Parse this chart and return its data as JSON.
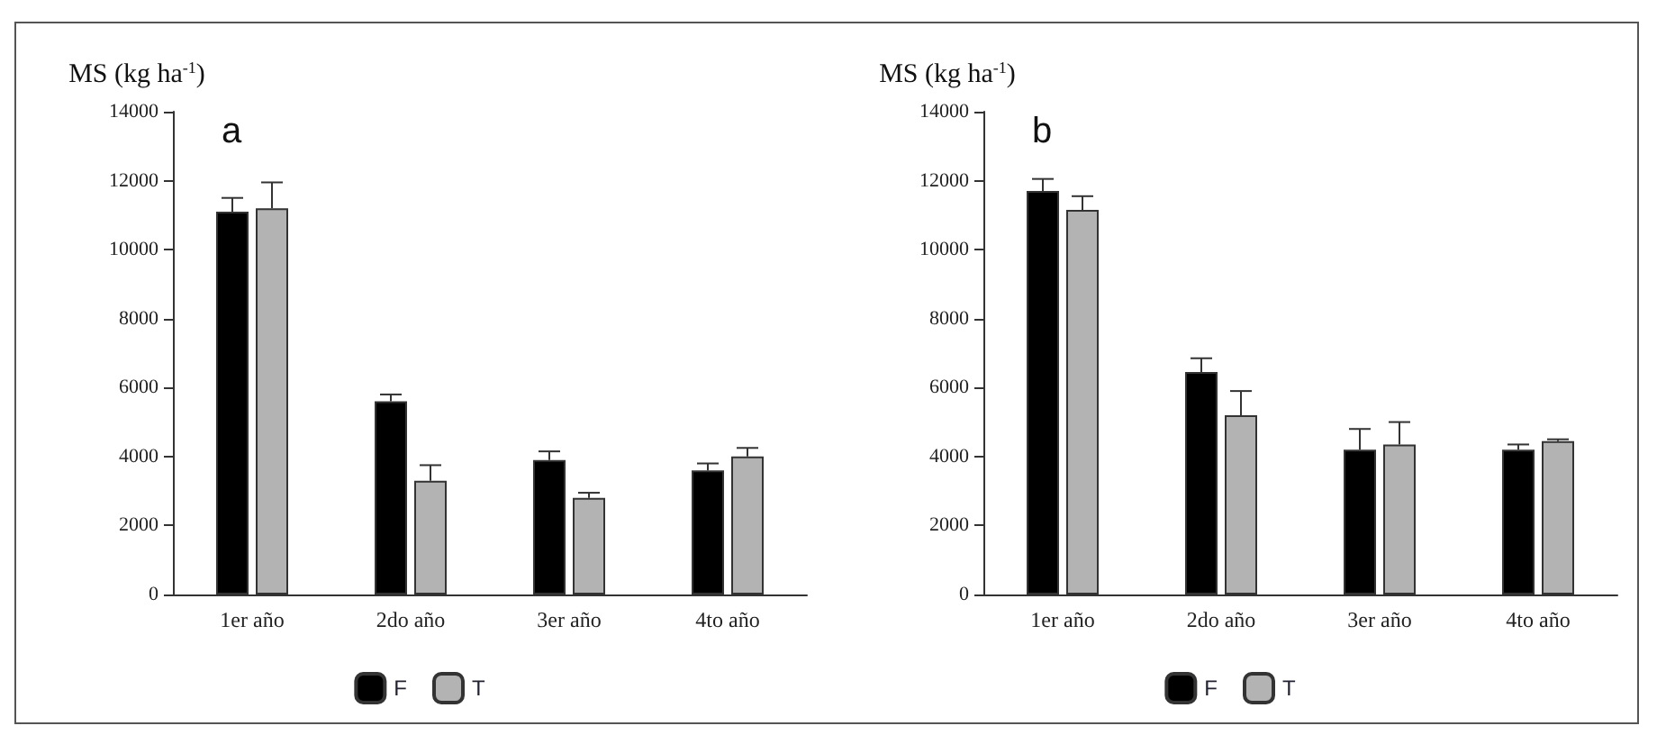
{
  "chart_data": [
    {
      "type": "bar",
      "title": "a",
      "ylabel": "MS (kg ha$^{-1}$)",
      "categories": [
        "1er año",
        "2do año",
        "3er año",
        "4to año"
      ],
      "series": [
        {
          "name": "F",
          "color": "#000000",
          "values": [
            11100,
            5600,
            3900,
            3600
          ],
          "errors": [
            400,
            200,
            250,
            200
          ]
        },
        {
          "name": "T",
          "color": "#b3b3b3",
          "values": [
            11200,
            3300,
            2800,
            4000
          ],
          "errors": [
            750,
            450,
            150,
            250
          ]
        }
      ],
      "ylim": [
        0,
        14000
      ],
      "yticks": [
        0,
        2000,
        4000,
        6000,
        8000,
        10000,
        12000,
        14000
      ],
      "grid": false,
      "legend": "bottom"
    },
    {
      "type": "bar",
      "title": "b",
      "ylabel": "MS (kg ha$^{-1}$)",
      "categories": [
        "1er año",
        "2do año",
        "3er año",
        "4to año"
      ],
      "series": [
        {
          "name": "F",
          "color": "#000000",
          "values": [
            11700,
            6450,
            4200,
            4200
          ],
          "errors": [
            350,
            400,
            600,
            150
          ]
        },
        {
          "name": "T",
          "color": "#b3b3b3",
          "values": [
            11150,
            5200,
            4350,
            4450
          ],
          "errors": [
            400,
            700,
            650,
            50
          ]
        }
      ],
      "ylim": [
        0,
        14000
      ],
      "yticks": [
        0,
        2000,
        4000,
        6000,
        8000,
        10000,
        12000,
        14000
      ],
      "grid": false,
      "legend": "bottom"
    }
  ]
}
